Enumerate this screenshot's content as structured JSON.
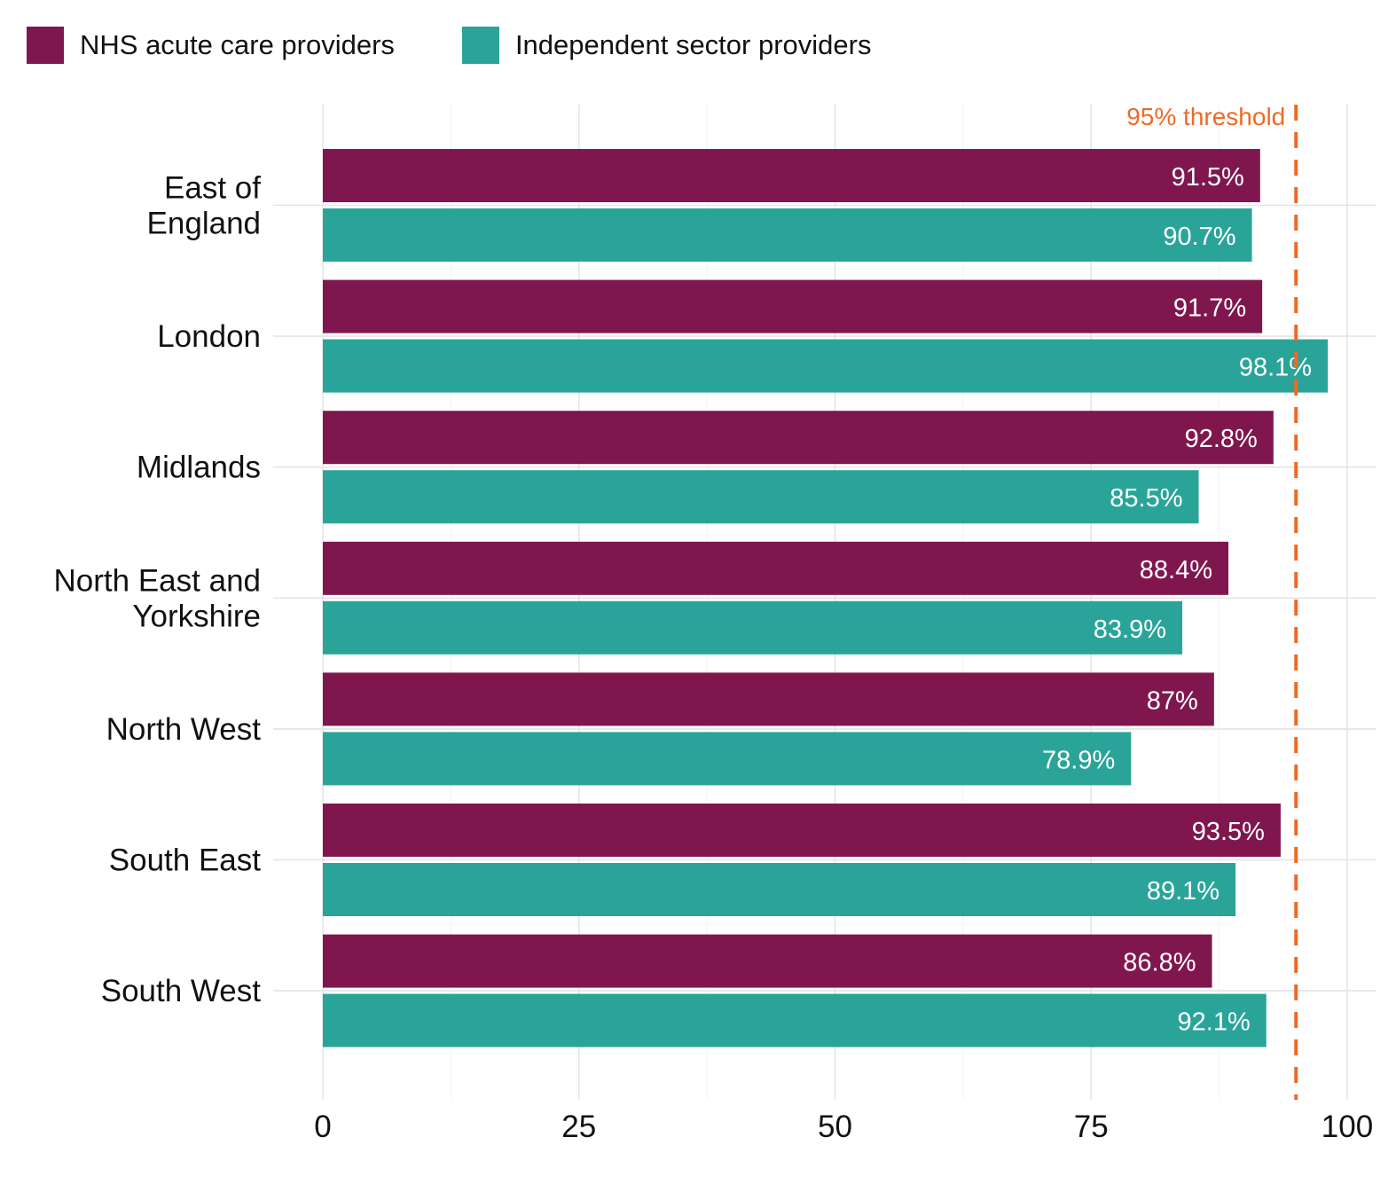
{
  "chart_data": {
    "type": "bar",
    "orientation": "horizontal",
    "categories": [
      "East of England",
      "London",
      "Midlands",
      "North East and Yorkshire",
      "North West",
      "South East",
      "South West"
    ],
    "category_label_lines": [
      [
        "East of",
        "England"
      ],
      [
        "London"
      ],
      [
        "Midlands"
      ],
      [
        "North East and",
        "Yorkshire"
      ],
      [
        "North West"
      ],
      [
        "South East"
      ],
      [
        "South West"
      ]
    ],
    "series": [
      {
        "name": "NHS acute care providers",
        "color": "#7f174e",
        "values": [
          91.5,
          91.7,
          92.8,
          88.4,
          87,
          93.5,
          86.8
        ],
        "labels": [
          "91.5%",
          "91.7%",
          "92.8%",
          "88.4%",
          "87%",
          "93.5%",
          "86.8%"
        ]
      },
      {
        "name": "Independent sector providers",
        "color": "#2aa498",
        "values": [
          90.7,
          98.1,
          85.5,
          83.9,
          78.9,
          89.1,
          92.1
        ],
        "labels": [
          "90.7%",
          "98.1%",
          "85.5%",
          "83.9%",
          "78.9%",
          "89.1%",
          "92.1%"
        ]
      }
    ],
    "xlim": [
      0,
      100
    ],
    "xticks": [
      0,
      25,
      50,
      75,
      100
    ],
    "xtick_labels": [
      "0",
      "25",
      "50",
      "75",
      "100"
    ],
    "title": "",
    "xlabel": "",
    "ylabel": "",
    "grid": true,
    "legend_position": "top-left",
    "reference_line": {
      "value": 95,
      "label": "95% threshold",
      "color": "#ee6a24",
      "style": "dashed"
    }
  }
}
